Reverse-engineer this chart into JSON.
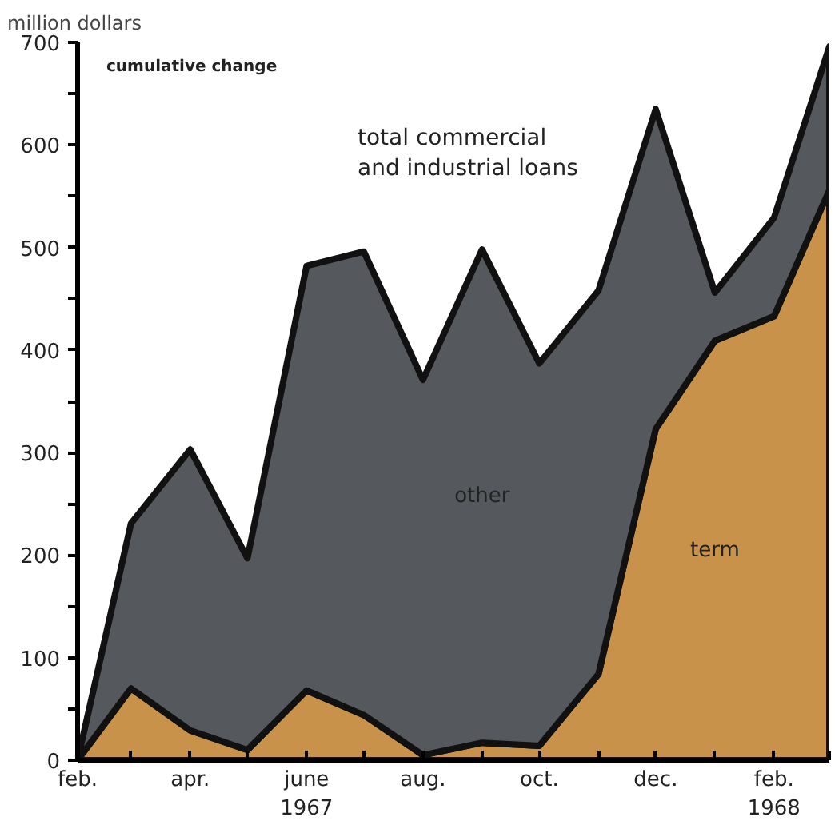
{
  "chart_data": {
    "type": "area",
    "stacked": true,
    "ylabel": "million dollars",
    "subtitle": "cumulative change",
    "annotations": [
      "total commercial\nand industrial loans"
    ],
    "x": [
      "1967-02",
      "1967-03",
      "1967-04",
      "1967-05",
      "1967-06",
      "1967-07",
      "1967-08",
      "1967-09",
      "1967-10",
      "1967-11",
      "1967-12",
      "1968-01",
      "1968-02",
      "1968-03"
    ],
    "series": [
      {
        "name": "term",
        "color": "#c8924a",
        "values": [
          0,
          70,
          29,
          10,
          68,
          44,
          5,
          17,
          14,
          84,
          323,
          409,
          433,
          556
        ]
      },
      {
        "name": "other",
        "color": "#55585c",
        "values": [
          0,
          161,
          274,
          187,
          414,
          452,
          366,
          481,
          373,
          374,
          312,
          47,
          96,
          140
        ]
      }
    ],
    "xlim": [
      "1967-02",
      "1968-03"
    ],
    "xticks": [
      {
        "value": "1967-02",
        "label": "feb."
      },
      {
        "value": "1967-03",
        "label": null
      },
      {
        "value": "1967-04",
        "label": "apr."
      },
      {
        "value": "1967-05",
        "label": null
      },
      {
        "value": "1967-06",
        "label": "june\n1967"
      },
      {
        "value": "1967-07",
        "label": null
      },
      {
        "value": "1967-08",
        "label": "aug."
      },
      {
        "value": "1967-09",
        "label": null
      },
      {
        "value": "1967-10",
        "label": "oct."
      },
      {
        "value": "1967-11",
        "label": null
      },
      {
        "value": "1967-12",
        "label": "dec."
      },
      {
        "value": "1968-01",
        "label": null
      },
      {
        "value": "1968-02",
        "label": "feb.\n1968"
      },
      {
        "value": "1968-03",
        "label": null
      }
    ],
    "ylim": [
      0,
      700
    ],
    "yticks": [
      0,
      {
        "value": 50,
        "label": null
      },
      100,
      {
        "value": 150,
        "label": null
      },
      200,
      {
        "value": 250,
        "label": null
      },
      300,
      {
        "value": 350,
        "label": null
      },
      400,
      {
        "value": 450,
        "label": null
      },
      500,
      {
        "value": 550,
        "label": null
      },
      600,
      {
        "value": 650,
        "label": null
      },
      700
    ],
    "grid": false
  }
}
